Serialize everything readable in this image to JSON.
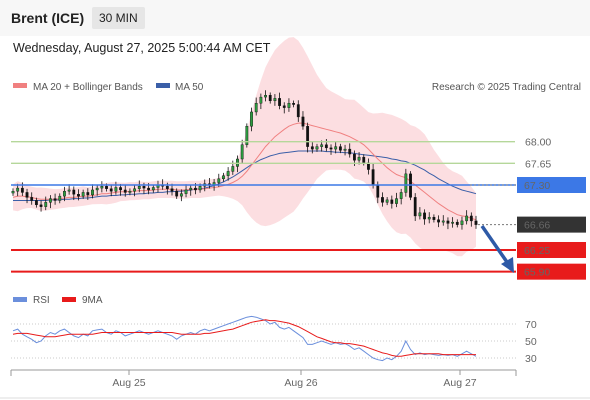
{
  "header": {
    "instrument": "Brent (ICE)",
    "timeframe": "30 MIN",
    "datetime": "Wednesday, August 27, 2025 5:00:44 AM CET"
  },
  "legend": {
    "ma20_label": "MA 20 + Bollinger Bands",
    "ma50_label": "MA 50",
    "rsi_label": "RSI",
    "ma9_label": "9MA",
    "credit": "Research © 2025 Trading Central"
  },
  "colors": {
    "ma20": "#f08080",
    "ma50": "#3b5fa8",
    "band": "#fbd3d7",
    "green_level": "#b5d79a",
    "blue_level": "#3c78e6",
    "red_level": "#e81b1b",
    "last_price": "#333333",
    "rsi": "#6b8fdc",
    "rsi_ma": "#e81b1b",
    "arrow": "#2e5aa7"
  },
  "chart_data": [
    {
      "type": "line",
      "subtype": "candlestick",
      "title": "Brent (ICE)",
      "x_ticks": [
        "Aug 25",
        "Aug 26",
        "Aug 27"
      ],
      "ylim": [
        65.6,
        68.5
      ],
      "levels": [
        {
          "value": 68.0,
          "label": "68.00",
          "role": "resistance",
          "style": "green-line"
        },
        {
          "value": 67.65,
          "label": "67.65",
          "role": "resistance",
          "style": "green-line"
        },
        {
          "value": 67.3,
          "label": "67.30",
          "role": "pivot",
          "style": "blue-line-box"
        },
        {
          "value": 66.66,
          "label": "66.66",
          "role": "last-price",
          "style": "dark-box"
        },
        {
          "value": 66.25,
          "label": "66.25",
          "role": "target",
          "style": "red-line-box"
        },
        {
          "value": 65.9,
          "label": "65.90",
          "role": "target",
          "style": "red-line-box"
        }
      ],
      "closes": [
        67.2,
        67.25,
        67.18,
        67.1,
        67.05,
        66.98,
        66.95,
        67.02,
        67.08,
        67.05,
        67.12,
        67.2,
        67.22,
        67.15,
        67.12,
        67.18,
        67.14,
        67.22,
        67.25,
        67.28,
        67.24,
        67.2,
        67.26,
        67.22,
        67.18,
        67.2,
        67.24,
        67.28,
        67.25,
        67.22,
        67.26,
        67.3,
        67.28,
        67.24,
        67.2,
        67.12,
        67.16,
        67.22,
        67.25,
        67.22,
        67.28,
        67.32,
        67.3,
        67.34,
        67.4,
        67.45,
        67.52,
        67.6,
        67.72,
        67.95,
        68.25,
        68.48,
        68.62,
        68.72,
        68.75,
        68.66,
        68.7,
        68.58,
        68.55,
        68.62,
        68.6,
        68.4,
        68.25,
        67.92,
        67.88,
        67.92,
        67.95,
        67.9,
        67.88,
        67.92,
        67.86,
        67.88,
        67.8,
        67.7,
        67.75,
        67.66,
        67.55,
        67.3,
        67.1,
        67.02,
        67.06,
        67.0,
        67.08,
        67.18,
        67.48,
        67.1,
        66.8,
        66.85,
        66.75,
        66.78,
        66.74,
        66.7,
        66.72,
        66.68,
        66.7,
        66.66,
        66.72,
        66.8,
        66.72,
        66.66
      ],
      "ma20": [
        67.1,
        67.12,
        67.12,
        67.11,
        67.1,
        67.08,
        67.07,
        67.07,
        67.07,
        67.07,
        67.08,
        67.09,
        67.1,
        67.1,
        67.11,
        67.12,
        67.12,
        67.13,
        67.14,
        67.16,
        67.16,
        67.17,
        67.18,
        67.19,
        67.19,
        67.2,
        67.2,
        67.21,
        67.21,
        67.21,
        67.22,
        67.23,
        67.23,
        67.23,
        67.23,
        67.22,
        67.22,
        67.22,
        67.23,
        67.23,
        67.23,
        67.24,
        67.25,
        67.26,
        67.27,
        67.29,
        67.31,
        67.34,
        67.38,
        67.44,
        67.52,
        67.62,
        67.72,
        67.82,
        67.92,
        68.0,
        68.08,
        68.14,
        68.2,
        68.25,
        68.28,
        68.3,
        68.3,
        68.28,
        68.26,
        68.24,
        68.22,
        68.2,
        68.18,
        68.16,
        68.14,
        68.11,
        68.08,
        68.04,
        68.0,
        67.95,
        67.88,
        67.8,
        67.72,
        67.65,
        67.58,
        67.52,
        67.47,
        67.44,
        67.42,
        67.36,
        67.3,
        67.24,
        67.18,
        67.12,
        67.06,
        67.0,
        66.95,
        66.9,
        66.86,
        66.82,
        66.8,
        66.79,
        66.76,
        66.74
      ],
      "ma50": [
        67.05,
        67.05,
        67.05,
        67.05,
        67.05,
        67.05,
        67.05,
        67.05,
        67.06,
        67.06,
        67.06,
        67.07,
        67.07,
        67.08,
        67.08,
        67.09,
        67.09,
        67.1,
        67.11,
        67.12,
        67.12,
        67.13,
        67.13,
        67.14,
        67.14,
        67.15,
        67.15,
        67.16,
        67.16,
        67.17,
        67.17,
        67.18,
        67.18,
        67.19,
        67.19,
        67.2,
        67.2,
        67.21,
        67.22,
        67.23,
        67.24,
        67.25,
        67.27,
        67.29,
        67.32,
        67.35,
        67.39,
        67.43,
        67.48,
        67.53,
        67.58,
        67.63,
        67.67,
        67.71,
        67.74,
        67.77,
        67.79,
        67.81,
        67.82,
        67.83,
        67.84,
        67.85,
        67.85,
        67.85,
        67.85,
        67.85,
        67.85,
        67.84,
        67.84,
        67.83,
        67.83,
        67.82,
        67.82,
        67.81,
        67.8,
        67.79,
        67.78,
        67.77,
        67.76,
        67.75,
        67.74,
        67.72,
        67.71,
        67.69,
        67.68,
        67.65,
        67.62,
        67.58,
        67.54,
        67.49,
        67.45,
        67.4,
        67.36,
        67.32,
        67.28,
        67.25,
        67.22,
        67.2,
        67.18,
        67.16
      ]
    },
    {
      "type": "line",
      "title": "RSI",
      "ylim": [
        20,
        80
      ],
      "y_ticks": [
        70,
        50,
        30
      ],
      "series": [
        {
          "name": "RSI",
          "values": [
            62,
            64,
            58,
            55,
            52,
            48,
            50,
            56,
            60,
            58,
            62,
            64,
            60,
            56,
            54,
            58,
            56,
            62,
            63,
            64,
            60,
            58,
            62,
            60,
            56,
            58,
            60,
            62,
            60,
            58,
            60,
            62,
            60,
            58,
            56,
            52,
            56,
            58,
            60,
            58,
            62,
            64,
            62,
            64,
            66,
            68,
            70,
            72,
            74,
            76,
            78,
            79,
            78,
            76,
            74,
            70,
            72,
            66,
            64,
            66,
            62,
            58,
            54,
            46,
            46,
            48,
            50,
            48,
            46,
            48,
            46,
            47,
            44,
            40,
            42,
            38,
            34,
            30,
            28,
            27,
            30,
            28,
            32,
            38,
            50,
            40,
            34,
            36,
            34,
            35,
            34,
            33,
            34,
            33,
            34,
            32,
            35,
            38,
            35,
            32
          ]
        },
        {
          "name": "9MA",
          "values": [
            58,
            59,
            59,
            59,
            58,
            57,
            56,
            55,
            55,
            55,
            56,
            57,
            58,
            58,
            58,
            58,
            58,
            58,
            59,
            60,
            60,
            60,
            60,
            60,
            60,
            60,
            60,
            60,
            60,
            60,
            60,
            60,
            60,
            60,
            60,
            59,
            58,
            58,
            58,
            58,
            58,
            59,
            59,
            60,
            61,
            62,
            63,
            64,
            66,
            68,
            70,
            72,
            73,
            74,
            75,
            74,
            74,
            73,
            72,
            71,
            69,
            67,
            64,
            61,
            58,
            55,
            53,
            51,
            49,
            48,
            48,
            47,
            47,
            46,
            45,
            44,
            42,
            40,
            38,
            36,
            35,
            33,
            32,
            32,
            33,
            34,
            35,
            35,
            35,
            35,
            35,
            35,
            34,
            34,
            34,
            34,
            34,
            34,
            34,
            34
          ]
        }
      ]
    }
  ]
}
